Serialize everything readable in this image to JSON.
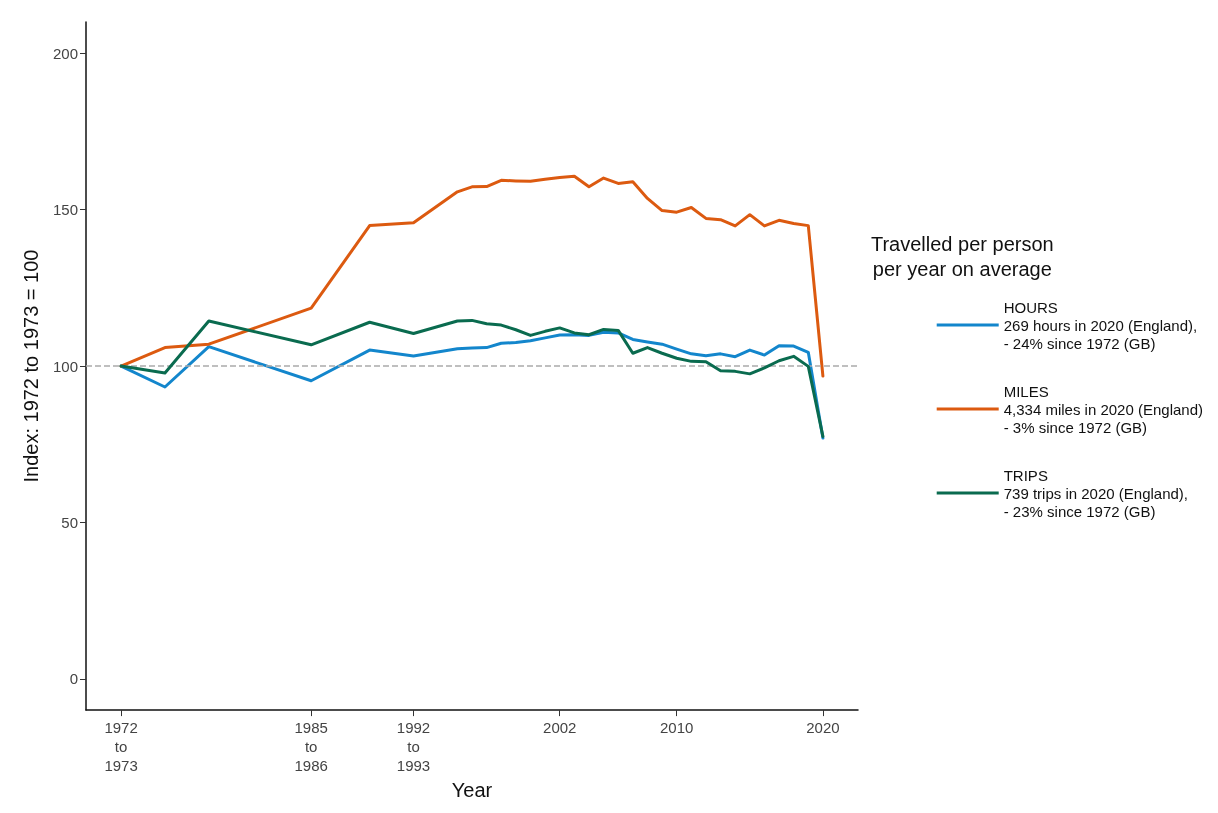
{
  "chart_data": {
    "type": "line",
    "xlabel": "Year",
    "ylabel": "Index: 1972 to 1973 = 100",
    "legend_title": "Travelled per person\nper year on average",
    "x": [
      1972,
      1975,
      1978,
      1985,
      1989,
      1992,
      1995,
      1996,
      1997,
      1998,
      1999,
      2000,
      2001,
      2002,
      2003,
      2004,
      2005,
      2006,
      2007,
      2008,
      2009,
      2010,
      2011,
      2012,
      2013,
      2014,
      2015,
      2016,
      2017,
      2018,
      2019,
      2020
    ],
    "series": [
      {
        "name": "HOURS\n269 hours in 2020 (England),\n- 24% since 1972 (GB)",
        "color": "#1386cc",
        "values": [
          100,
          93.3,
          106.2,
          95.3,
          105.1,
          103.2,
          105.5,
          105.8,
          105.9,
          107.3,
          107.5,
          108.1,
          109,
          109.9,
          110,
          109.8,
          110.8,
          110.6,
          108.5,
          107.7,
          107,
          105.4,
          103.9,
          103.3,
          103.9,
          103,
          105.1,
          103.5,
          106.5,
          106.4,
          104.4,
          77
        ]
      },
      {
        "name": "MILES\n4,334 miles in 2020 (England)\n- 3% since 1972 (GB)",
        "color": "#dc5a10",
        "values": [
          100,
          105.9,
          107,
          118.5,
          144.9,
          145.8,
          155.7,
          157.3,
          157.4,
          159.4,
          159.2,
          159.1,
          159.7,
          160.3,
          160.7,
          157.3,
          160.1,
          158.4,
          158.9,
          153.6,
          149.7,
          149.2,
          150.7,
          147.2,
          146.8,
          144.8,
          148.4,
          144.8,
          146.6,
          145.6,
          144.9,
          96.8
        ]
      },
      {
        "name": "TRIPS\n739 trips in 2020 (England),\n- 23% since 1972 (GB)",
        "color": "#0a6b4f",
        "values": [
          100,
          97.8,
          114.4,
          106.8,
          114,
          110.4,
          114.4,
          114.6,
          113.5,
          113.1,
          111.6,
          109.8,
          111.1,
          112.2,
          110.6,
          110,
          111.7,
          111.4,
          104.1,
          105.9,
          104.1,
          102.5,
          101.5,
          101.4,
          98.5,
          98.3,
          97.5,
          99.4,
          101.7,
          103.1,
          99.9,
          77.5
        ]
      }
    ],
    "xlim": [
      1969.6,
      2022.4
    ],
    "xticks": [
      {
        "value": 1972,
        "label": "1972\nto\n1973"
      },
      {
        "value": 1985,
        "label": "1985\nto\n1986"
      },
      {
        "value": 1992,
        "label": "1992\nto\n1993"
      },
      2002,
      2010,
      2020
    ],
    "ylim": [
      -10,
      210
    ],
    "yticks": [
      0,
      50,
      100,
      150,
      200
    ],
    "ref_lines": [
      {
        "axis": "y",
        "value": 100,
        "color": "#aaaaaa",
        "line_style": "dashed"
      }
    ],
    "grid": false,
    "legend": "right",
    "marker": "none",
    "line_style": "solid"
  }
}
